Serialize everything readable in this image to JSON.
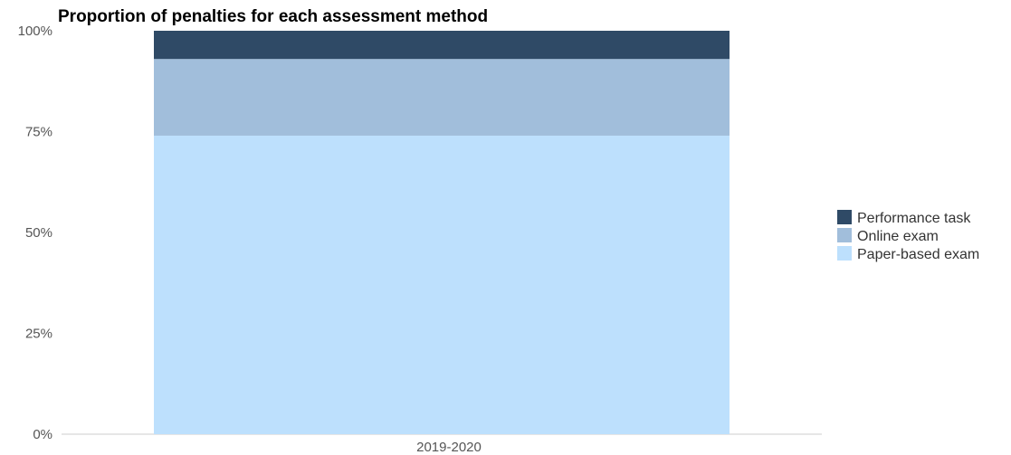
{
  "chart_data": {
    "type": "bar",
    "stacked": true,
    "title": "Proportion of penalties for each assessment method",
    "xlabel": "",
    "ylabel": "",
    "categories": [
      "2019-2020"
    ],
    "y_ticks": [
      "0%",
      "25%",
      "50%",
      "75%",
      "100%"
    ],
    "ylim": [
      0,
      100
    ],
    "grid": false,
    "legend_position": "right",
    "series": [
      {
        "name": "Paper-based exam",
        "values": [
          74
        ],
        "color": "#bde0fd"
      },
      {
        "name": "Online exam",
        "values": [
          19
        ],
        "color": "#a1bedb"
      },
      {
        "name": "Performance task",
        "values": [
          7
        ],
        "color": "#2f4a66"
      }
    ],
    "legend_order": [
      "Performance task",
      "Online exam",
      "Paper-based exam"
    ]
  }
}
